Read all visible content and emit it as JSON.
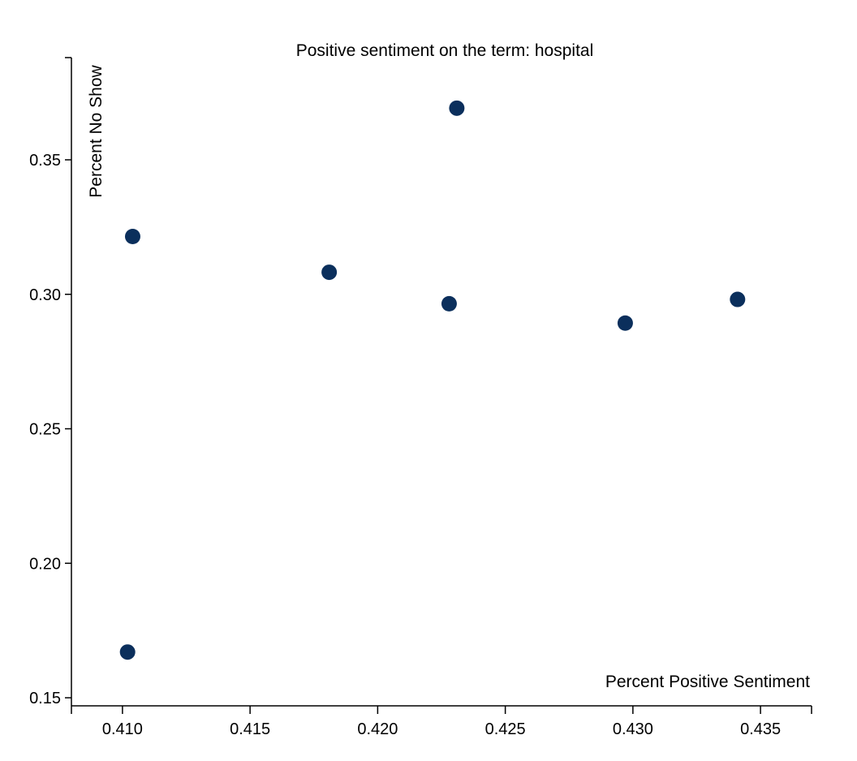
{
  "chart_data": {
    "type": "scatter",
    "title": "Positive sentiment on the term: hospital",
    "xlabel": "Percent Positive Sentiment",
    "ylabel": "Percent No Show",
    "xlim": [
      0.408,
      0.437
    ],
    "ylim": [
      0.147,
      0.388
    ],
    "x_ticks": [
      "0.410",
      "0.415",
      "0.420",
      "0.425",
      "0.430",
      "0.435"
    ],
    "y_ticks": [
      "0.15",
      "0.20",
      "0.25",
      "0.30",
      "0.35"
    ],
    "grid": false,
    "points": [
      {
        "x": 0.4102,
        "y": 0.167
      },
      {
        "x": 0.4104,
        "y": 0.3215
      },
      {
        "x": 0.4181,
        "y": 0.3082
      },
      {
        "x": 0.4228,
        "y": 0.2965
      },
      {
        "x": 0.4231,
        "y": 0.3692
      },
      {
        "x": 0.4297,
        "y": 0.2893
      },
      {
        "x": 0.4341,
        "y": 0.2981
      }
    ],
    "color": "#0b2f5c"
  }
}
